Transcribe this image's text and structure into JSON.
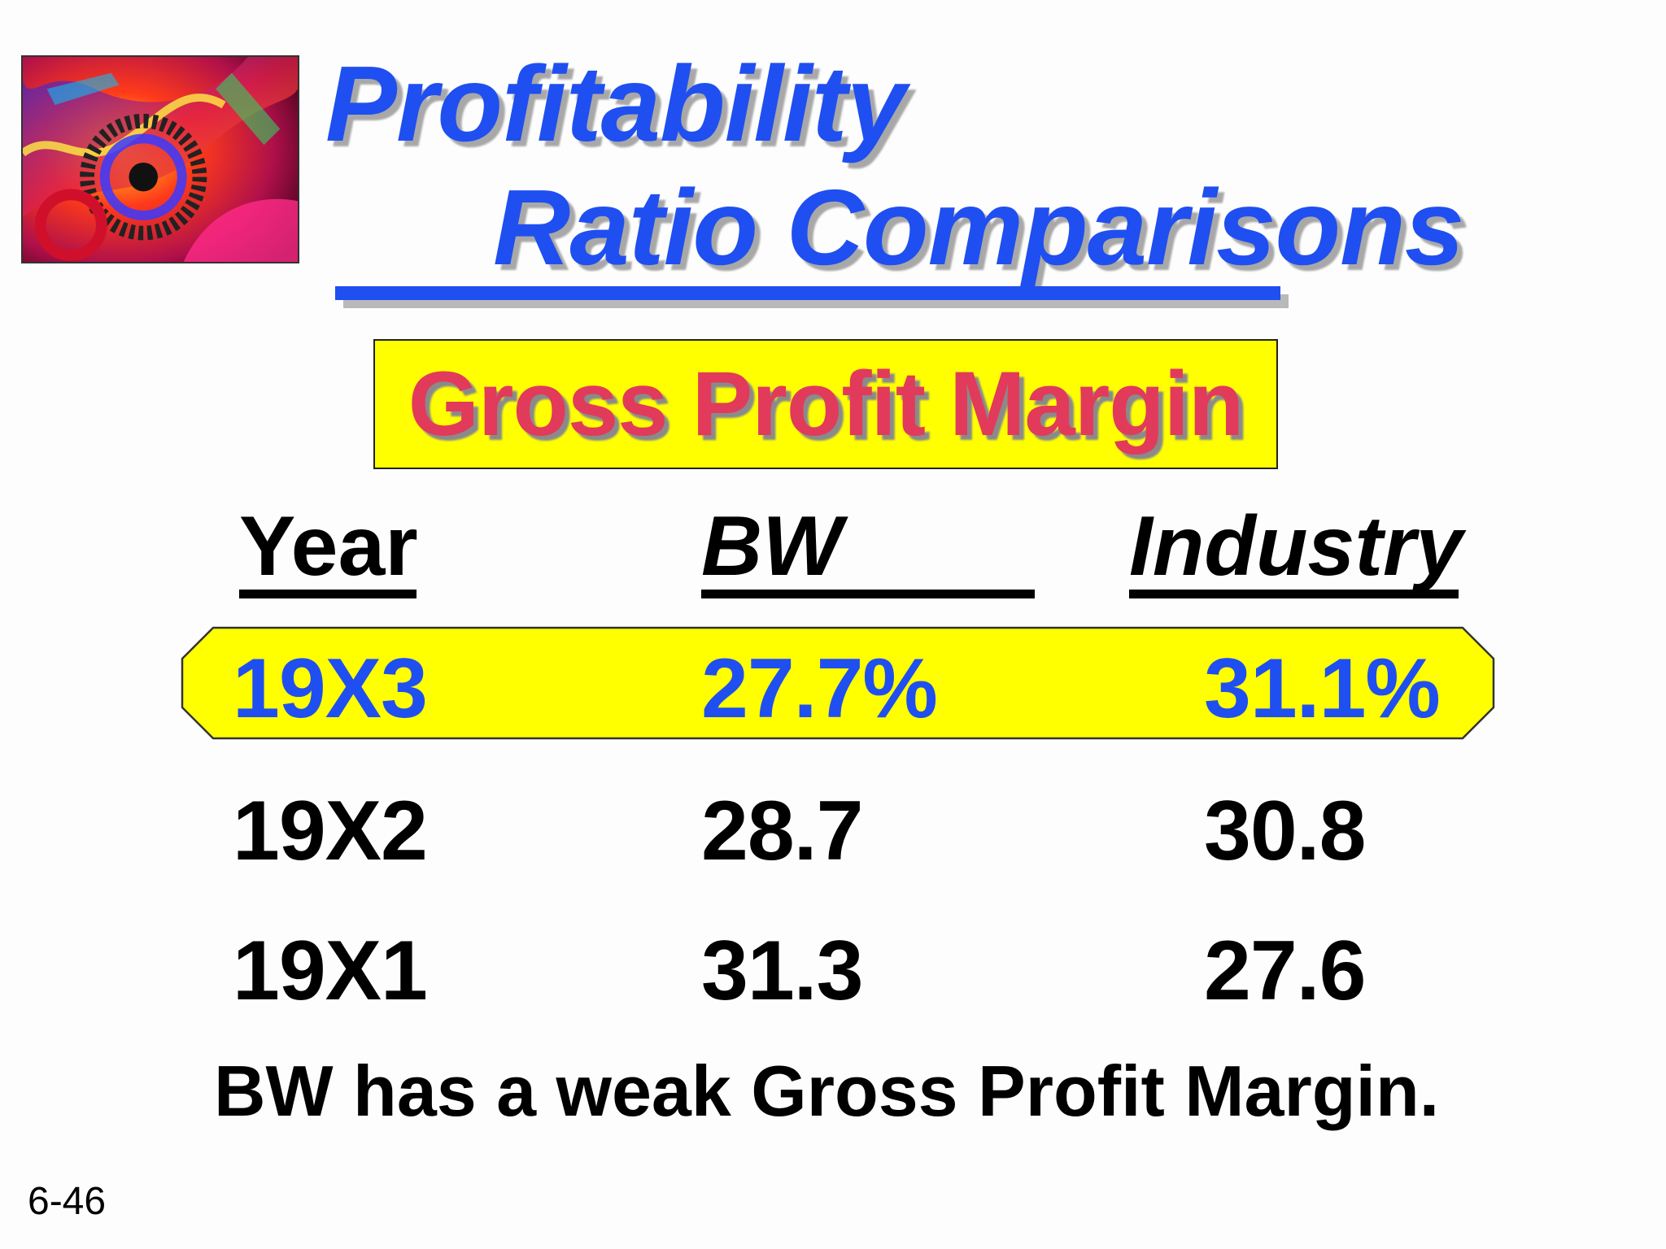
{
  "title": {
    "line1": "Profitability",
    "line2": "Ratio Comparisons"
  },
  "subtitle": "Gross Profit Margin",
  "table": {
    "headers": [
      "Year",
      "BW",
      "Industry"
    ],
    "rows": [
      {
        "year": "19X3",
        "bw": "27.7%",
        "industry": "31.1%",
        "highlighted": true
      },
      {
        "year": "19X2",
        "bw": "28.7",
        "industry": "30.8",
        "highlighted": false
      },
      {
        "year": "19X1",
        "bw": "31.3",
        "industry": "27.6",
        "highlighted": false
      }
    ]
  },
  "conclusion": "BW has a weak Gross Profit Margin.",
  "slide_number": "6-46",
  "colors": {
    "title_blue": "#1f4ff0",
    "subtitle_red": "#e23a5a",
    "highlight_yellow": "#ffff00"
  },
  "decorative_image": "abstract-gears-image"
}
